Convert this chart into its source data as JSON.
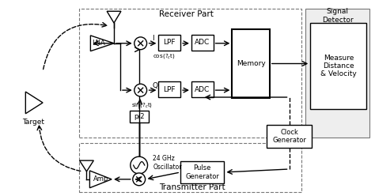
{
  "title_receiver": "Receiver Part",
  "title_transmitter": "Transmitter Part",
  "title_signal": "Signal\nDetector",
  "bg_color": "white",
  "box_color": "white",
  "border_color": "black"
}
